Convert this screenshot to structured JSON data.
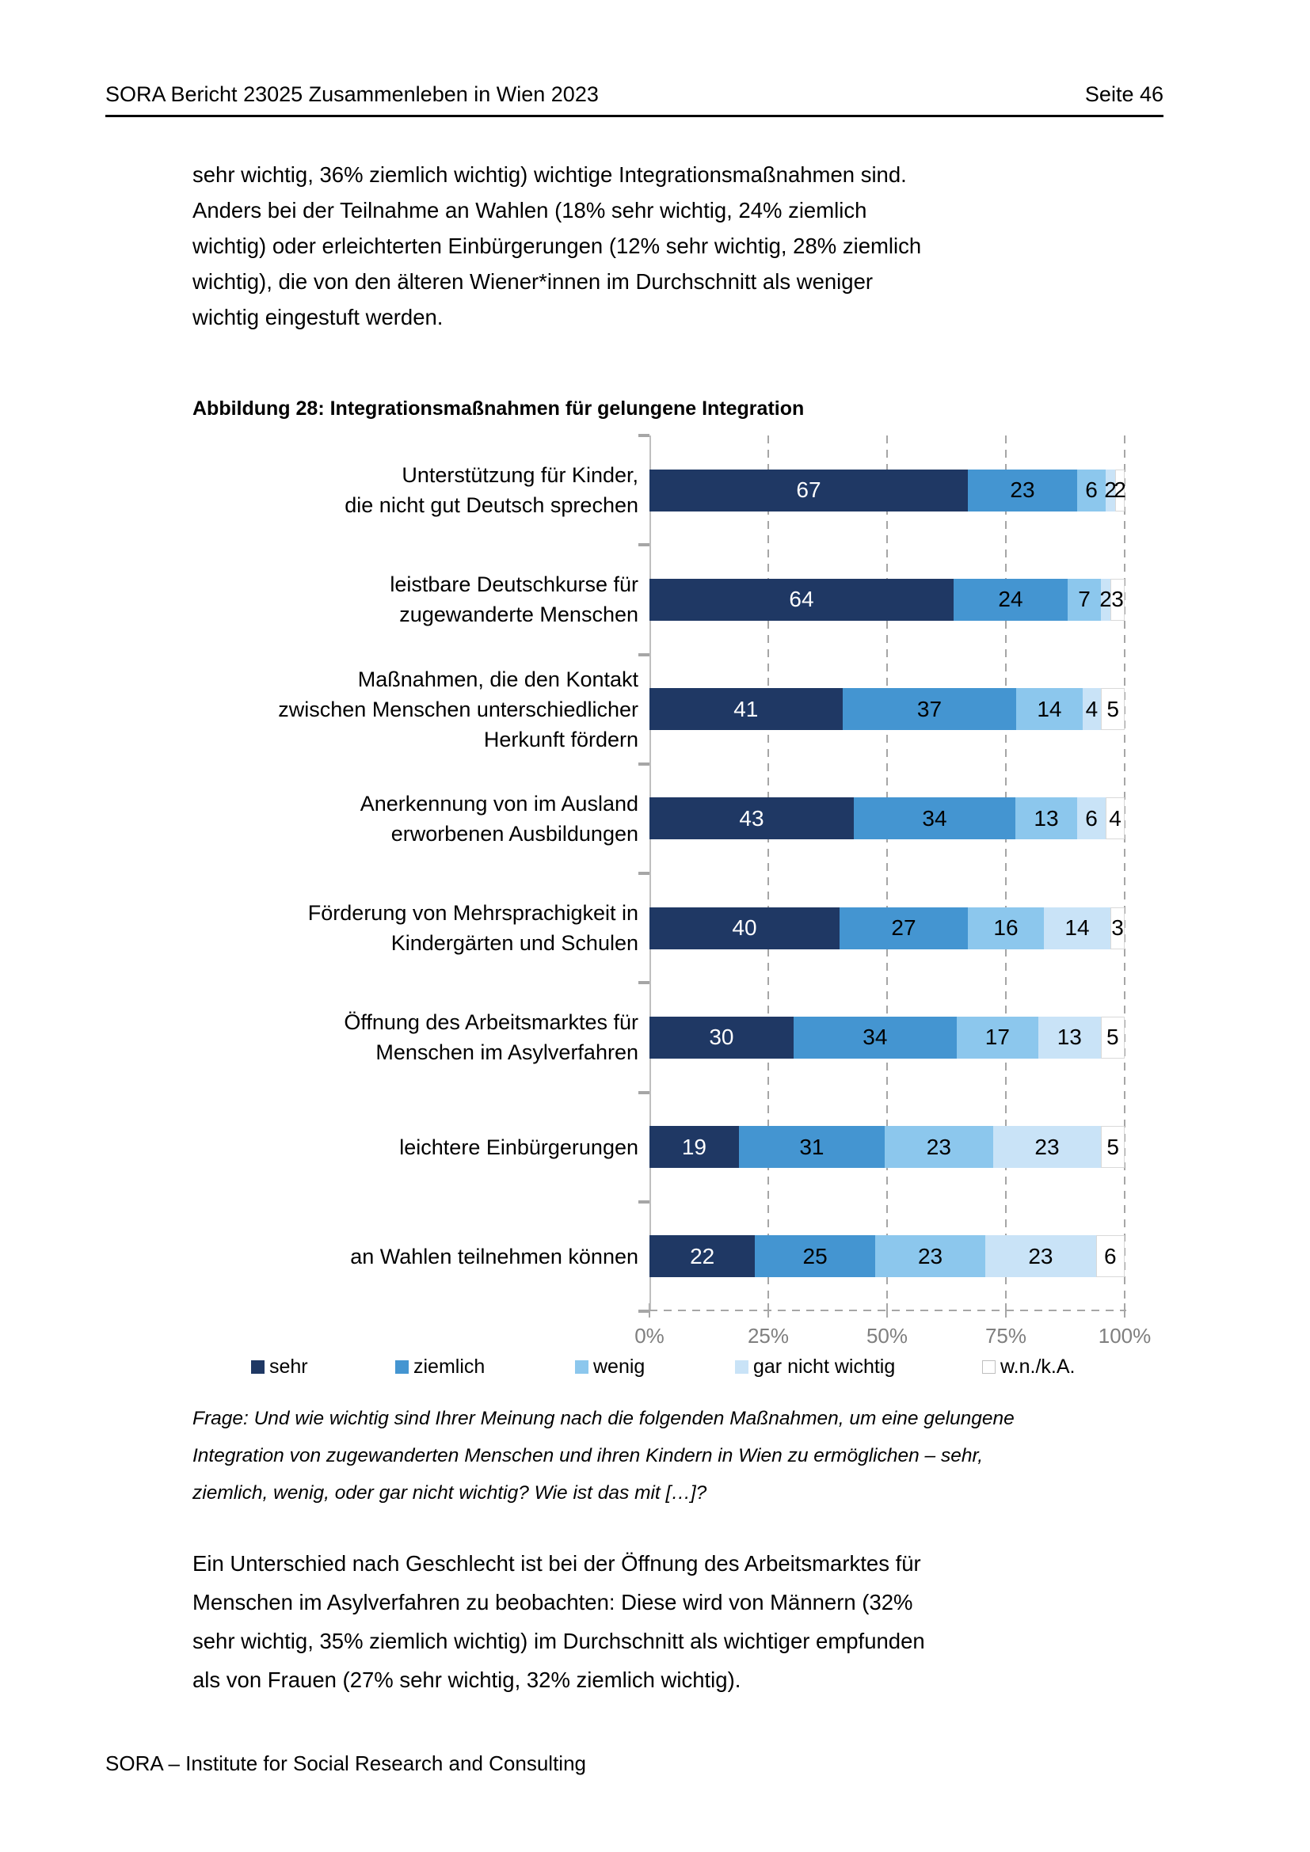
{
  "header": {
    "left": "SORA Bericht 23025 Zusammenleben in Wien 2023",
    "right": "Seite 46"
  },
  "paragraphs": {
    "top": "sehr wichtig, 36% ziemlich wichtig) wichtige Integrationsmaßnahmen sind.\nAnders bei der Teilnahme an Wahlen (18% sehr wichtig, 24% ziemlich\nwichtig) oder erleichterten Einbürgerungen (12% sehr wichtig, 28% ziemlich\nwichtig), die von den älteren Wiener*innen im Durchschnitt als weniger\nwichtig eingestuft werden.",
    "bottom": "Ein Unterschied nach Geschlecht ist bei der Öffnung des Arbeitsmarktes für\nMenschen im Asylverfahren zu beobachten: Diese wird von Männern (32%\nsehr wichtig, 35% ziemlich wichtig) im Durchschnitt als wichtiger empfunden\nals von Frauen (27% sehr wichtig, 32% ziemlich wichtig)."
  },
  "question_note": "Frage: Und wie wichtig sind Ihrer Meinung nach die folgenden Maßnahmen, um eine gelungene\nIntegration von zugewanderten Menschen und ihren Kindern in Wien zu ermöglichen – sehr,\nziemlich, wenig, oder gar nicht wichtig? Wie ist das mit […]?",
  "footer": "SORA – Institute for Social Research and Consulting",
  "chart_data": {
    "type": "bar",
    "orientation": "horizontal-stacked",
    "title": "Abbildung 28: Integrationsmaßnahmen für gelungene Integration",
    "unit": "percent",
    "xlim": [
      0,
      100
    ],
    "x_tick_values": [
      0,
      25,
      50,
      75,
      100
    ],
    "x_tick_labels": [
      "0%",
      "25%",
      "50%",
      "75%",
      "100%"
    ],
    "grid": "vertical-dashed",
    "legend_position": "bottom",
    "legend": [
      "sehr",
      "ziemlich",
      "wenig",
      "gar nicht wichtig",
      "w.n./k.A."
    ],
    "colors": [
      "#1F3864",
      "#4495D1",
      "#8CC7ED",
      "#C9E3F7",
      "#FFFFFF"
    ],
    "label_text_colors": [
      "#FFFFFF",
      "#000000",
      "#000000",
      "#000000",
      "#000000"
    ],
    "categories": [
      "Unterstützung für Kinder,\ndie nicht gut Deutsch sprechen",
      "leistbare Deutschkurse für\nzugewanderte Menschen",
      "Maßnahmen, die den Kontakt\nzwischen Menschen unterschiedlicher\nHerkunft fördern",
      "Anerkennung von im Ausland\nerworbenen Ausbildungen",
      "Förderung von Mehrsprachigkeit in\nKindergärten und Schulen",
      "Öffnung des Arbeitsmarktes für\nMenschen im Asylverfahren",
      "leichtere Einbürgerungen",
      "an Wahlen teilnehmen können"
    ],
    "series": [
      {
        "name": "sehr",
        "values": [
          67,
          64,
          41,
          43,
          40,
          30,
          19,
          22
        ]
      },
      {
        "name": "ziemlich",
        "values": [
          23,
          24,
          37,
          34,
          27,
          34,
          31,
          25
        ]
      },
      {
        "name": "wenig",
        "values": [
          6,
          7,
          14,
          13,
          16,
          17,
          23,
          23
        ]
      },
      {
        "name": "gar nicht wichtig",
        "values": [
          2,
          2,
          4,
          6,
          14,
          13,
          23,
          23
        ]
      },
      {
        "name": "w.n./k.A.",
        "values": [
          2,
          3,
          5,
          4,
          3,
          5,
          5,
          6
        ]
      }
    ]
  }
}
